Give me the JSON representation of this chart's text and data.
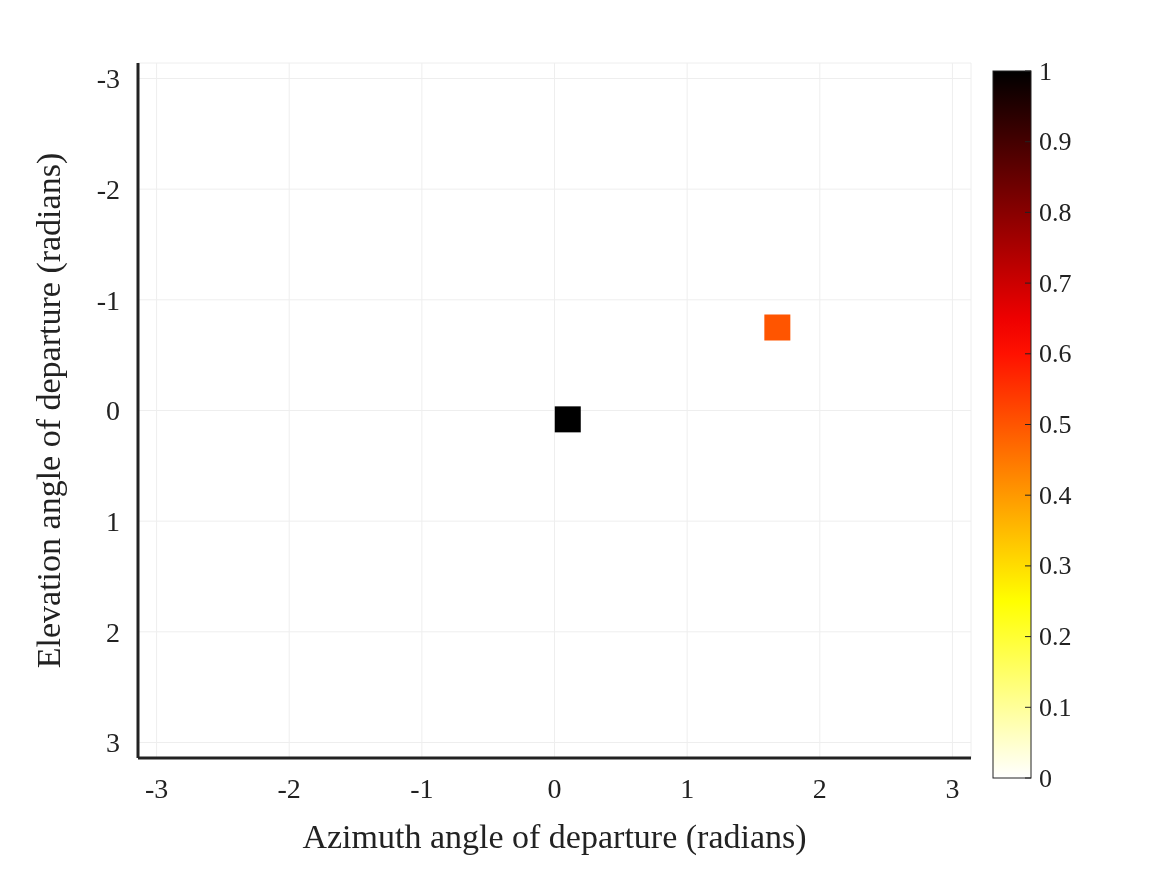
{
  "chart_data": {
    "type": "scatter",
    "xlabel": "Azimuth angle of departure (radians)",
    "ylabel": "Elevation angle of departure (radians)",
    "x": [
      0.1,
      1.68
    ],
    "values": [
      0.08,
      -0.75
    ],
    "cvalues": [
      1,
      0.5
    ],
    "marker": "square",
    "xlim": [
      -3.14,
      3.14
    ],
    "ylim": [
      3.14,
      -3.14
    ],
    "xticks": [
      -3,
      -2,
      -1,
      0,
      1,
      2,
      3
    ],
    "yticks": [
      -3,
      -2,
      -1,
      0,
      1,
      2,
      3
    ],
    "clim": [
      0,
      1
    ],
    "cticks": [
      0,
      0.1,
      0.2,
      0.3,
      0.4,
      0.5,
      0.6,
      0.7,
      0.8,
      0.9,
      1
    ],
    "grid": true,
    "legend": false
  }
}
